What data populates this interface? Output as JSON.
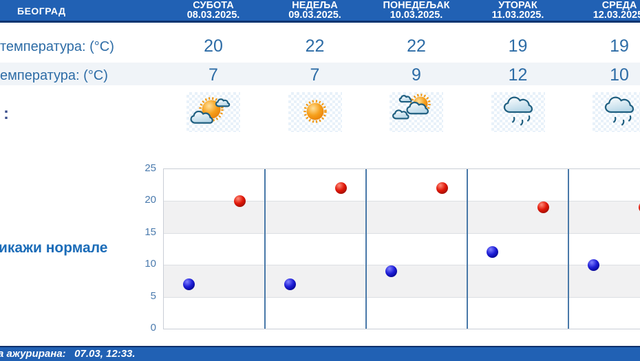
{
  "header": {
    "city": "БЕОГРАД",
    "days": [
      {
        "name": "СУБОТА",
        "date": "08.03.2025."
      },
      {
        "name": "НЕДЕЉА",
        "date": "09.03.2025."
      },
      {
        "name": "ПОНЕДЕЉАК",
        "date": "10.03.2025."
      },
      {
        "name": "УТОРАК",
        "date": "11.03.2025."
      },
      {
        "name": "СРЕДА",
        "date": "12.03.2025."
      }
    ]
  },
  "rows": {
    "max_temp": {
      "label": "температура: (°C)",
      "values": [
        "20",
        "22",
        "22",
        "19",
        "19"
      ]
    },
    "min_temp": {
      "label": "емпература: (°C)",
      "values": [
        "7",
        "7",
        "9",
        "12",
        "10"
      ]
    },
    "weather": {
      "label": ":",
      "icons": [
        "partly-cloudy",
        "sunny",
        "mostly-cloudy",
        "rain",
        "rain"
      ]
    }
  },
  "normals_link": "икажи нормале",
  "footer": {
    "updated_text": "а ажурирана:   07.03, 12:33."
  },
  "chart_data": {
    "type": "scatter",
    "categories": [
      "08.03.2025.",
      "09.03.2025.",
      "10.03.2025.",
      "11.03.2025.",
      "12.03.2025."
    ],
    "series": [
      {
        "name": "max_temp",
        "values": [
          20,
          22,
          22,
          19,
          19
        ],
        "color": "#e01708",
        "x_offset_fraction": 0.75
      },
      {
        "name": "min_temp",
        "values": [
          7,
          7,
          9,
          12,
          10
        ],
        "color": "#1d1dd6",
        "x_offset_fraction": 0.25
      }
    ],
    "ylabel": "",
    "xlabel": "",
    "ylim": [
      0,
      25
    ],
    "yticks": [
      0,
      5,
      10,
      15,
      20,
      25
    ],
    "grid": true,
    "alternating_bands": true,
    "day_separators": true,
    "legend": "none"
  },
  "colors": {
    "header_bg": "#2161b4",
    "header_border": "#0e3570",
    "text_blue": "#2d6ca6",
    "axis_blue": "#4a7aad",
    "link_blue": "#1b6cb8",
    "separator_blue": "#4878a8",
    "band_gray": "#f1f1f2",
    "max_dot_red": "#e01708",
    "min_dot_blue": "#1d1dd6"
  }
}
